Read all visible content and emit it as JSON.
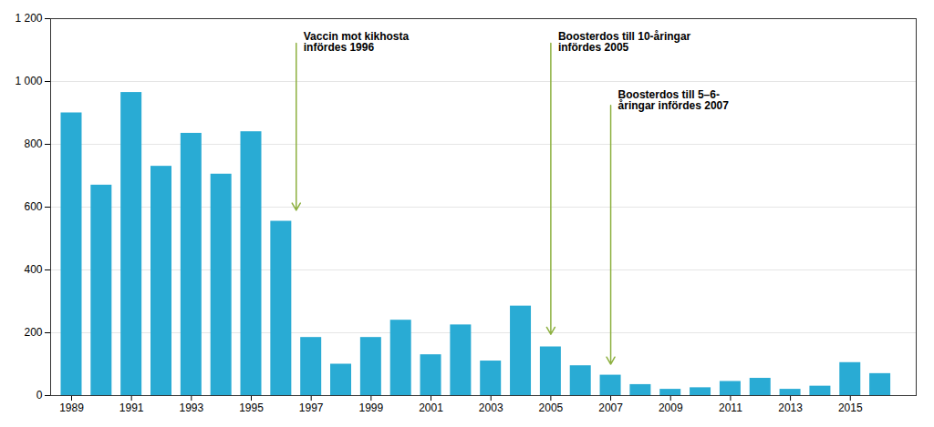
{
  "chart_data": {
    "type": "bar",
    "x": [
      1989,
      1990,
      1991,
      1992,
      1993,
      1994,
      1995,
      1996,
      1997,
      1998,
      1999,
      2000,
      2001,
      2002,
      2003,
      2004,
      2005,
      2006,
      2007,
      2008,
      2009,
      2010,
      2011,
      2012,
      2013,
      2014,
      2015,
      2016
    ],
    "values": [
      900,
      670,
      965,
      730,
      835,
      705,
      840,
      555,
      185,
      100,
      185,
      240,
      130,
      225,
      110,
      285,
      155,
      95,
      65,
      35,
      20,
      25,
      45,
      55,
      20,
      30,
      105,
      70
    ],
    "color": "#29ABD4",
    "xlim": [
      1988.3,
      2017.2
    ],
    "xticks": [
      1989,
      1991,
      1993,
      1995,
      1997,
      1999,
      2001,
      2003,
      2005,
      2007,
      2009,
      2011,
      2013,
      2015
    ],
    "ylim": [
      0,
      1200
    ],
    "yticks": [
      0,
      200,
      400,
      600,
      800,
      {
        "value": 1000,
        "label": "1 000"
      },
      {
        "value": 1200,
        "label": "1 200"
      }
    ],
    "grid": true,
    "annotations": [
      {
        "text": "Vaccin mot kikhosta\ninfördes 1996",
        "x": 1996.5,
        "y": 590,
        "color": "#8DB040"
      },
      {
        "text": "Boosterdos till 10-åringar\ninfördes 2005",
        "x": 2005.0,
        "y": 195,
        "color": "#8DB040"
      },
      {
        "text": "Boosterdos till 5–6-\nåringar infördes 2007",
        "x": 2007.0,
        "y": 100,
        "color": "#8DB040"
      }
    ]
  }
}
